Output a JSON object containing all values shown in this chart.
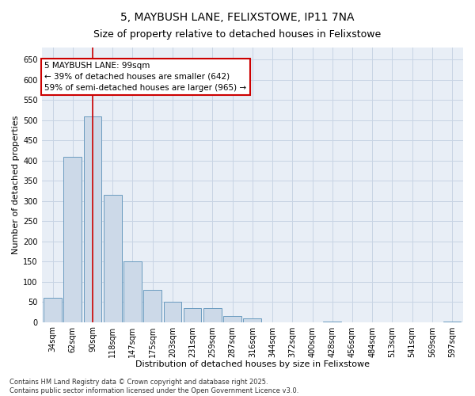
{
  "title1": "5, MAYBUSH LANE, FELIXSTOWE, IP11 7NA",
  "title2": "Size of property relative to detached houses in Felixstowe",
  "xlabel": "Distribution of detached houses by size in Felixstowe",
  "ylabel": "Number of detached properties",
  "categories": [
    "34sqm",
    "62sqm",
    "90sqm",
    "118sqm",
    "147sqm",
    "175sqm",
    "203sqm",
    "231sqm",
    "259sqm",
    "287sqm",
    "316sqm",
    "344sqm",
    "372sqm",
    "400sqm",
    "428sqm",
    "456sqm",
    "484sqm",
    "513sqm",
    "541sqm",
    "569sqm",
    "597sqm"
  ],
  "values": [
    60,
    410,
    510,
    315,
    150,
    80,
    50,
    35,
    35,
    15,
    10,
    0,
    0,
    0,
    1,
    0,
    0,
    0,
    0,
    0,
    1
  ],
  "bar_color": "#ccd9e8",
  "bar_edge_color": "#6a9bbf",
  "vline_x_index": 2,
  "vline_color": "#cc0000",
  "annotation_text": "5 MAYBUSH LANE: 99sqm\n← 39% of detached houses are smaller (642)\n59% of semi-detached houses are larger (965) →",
  "annotation_box_color": "#ffffff",
  "annotation_box_edge": "#cc0000",
  "ylim": [
    0,
    680
  ],
  "yticks": [
    0,
    50,
    100,
    150,
    200,
    250,
    300,
    350,
    400,
    450,
    500,
    550,
    600,
    650
  ],
  "grid_color": "#c8d4e4",
  "bg_color": "#e8eef6",
  "footer_text": "Contains HM Land Registry data © Crown copyright and database right 2025.\nContains public sector information licensed under the Open Government Licence v3.0.",
  "title1_fontsize": 10,
  "title2_fontsize": 9,
  "axis_label_fontsize": 8,
  "tick_fontsize": 7,
  "annotation_fontsize": 7.5,
  "footer_fontsize": 6
}
